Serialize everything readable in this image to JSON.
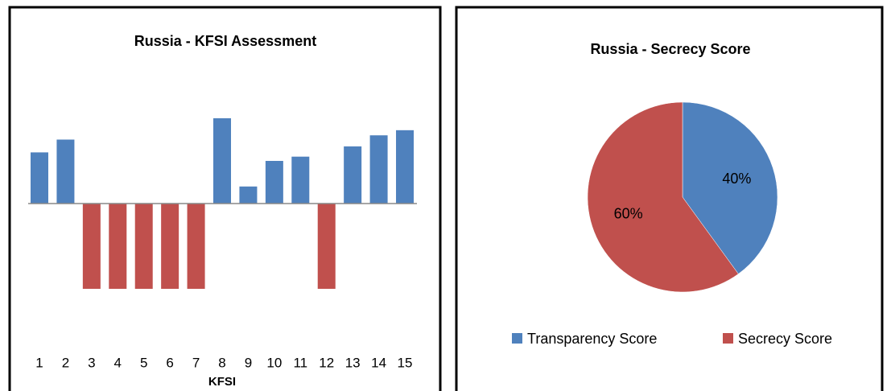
{
  "chart_data": [
    {
      "type": "bar",
      "title": "Russia - KFSI Assessment",
      "x_label": "KFSI",
      "categories": [
        "1",
        "2",
        "3",
        "4",
        "5",
        "6",
        "7",
        "8",
        "9",
        "10",
        "11",
        "12",
        "13",
        "14",
        "15"
      ],
      "values": [
        0.6,
        0.75,
        -1,
        -1,
        -1,
        -1,
        -1,
        1,
        0.2,
        0.5,
        0.55,
        -1,
        0.67,
        0.8,
        0.86
      ],
      "color": "#4f81bd",
      "negative_color": "#c0504d"
    },
    {
      "type": "pie",
      "title": "Russia - Secrecy Score",
      "categories": [
        "Transparency Score",
        "Secrecy Score"
      ],
      "values": [
        40,
        60
      ],
      "value_labels": [
        "40%",
        "60%"
      ],
      "colors": [
        "#4f81bd",
        "#c0504d"
      ],
      "legend": "bottom"
    }
  ]
}
